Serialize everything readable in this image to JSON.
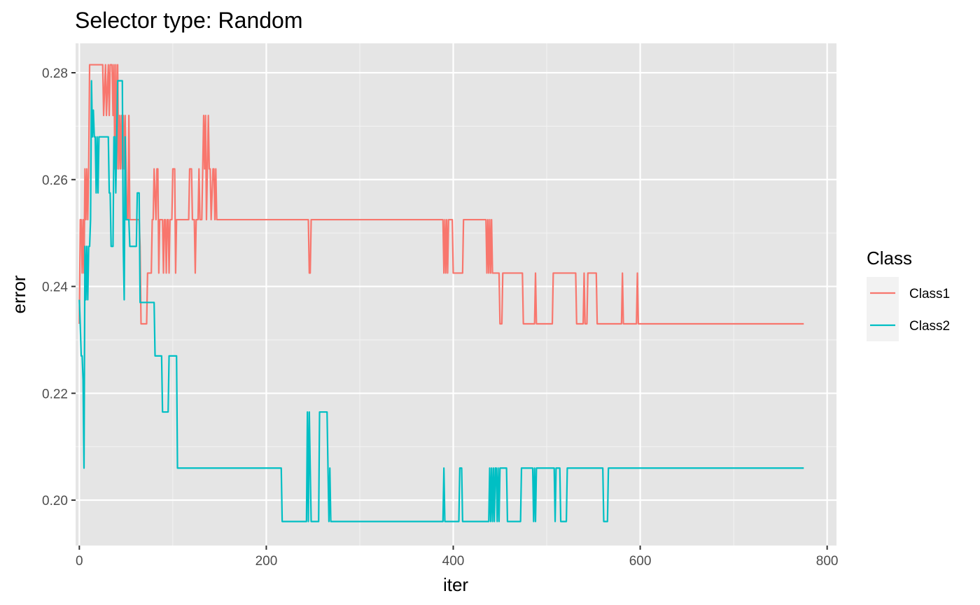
{
  "colors": {
    "panel_bg": "#E5E5E5",
    "grid_major": "#FFFFFF",
    "grid_minor": "#F2F2F2",
    "tick": "#333333",
    "legend_key_bg": "#F2F2F2",
    "class1": "#F8766D",
    "class2": "#00BFC4"
  },
  "chart_data": {
    "type": "line",
    "title": "Selector type: Random",
    "xlabel": "iter",
    "ylabel": "error",
    "xlim": [
      -4,
      810
    ],
    "ylim": [
      0.1915,
      0.2855
    ],
    "x_ticks": [
      0,
      200,
      400,
      600,
      800
    ],
    "x_tick_labels": [
      "0",
      "200",
      "400",
      "600",
      "800"
    ],
    "y_ticks": [
      0.2,
      0.22,
      0.24,
      0.26,
      0.28
    ],
    "y_tick_labels": [
      "0.20",
      "0.22",
      "0.24",
      "0.26",
      "0.28"
    ],
    "grid": true,
    "legend": {
      "title": "Class",
      "position": "right"
    },
    "series": [
      {
        "name": "Class1",
        "color": "#F8766D",
        "points": [
          [
            0,
            0.233
          ],
          [
            1,
            0.2525
          ],
          [
            2,
            0.2525
          ],
          [
            3,
            0.2425
          ],
          [
            4,
            0.2525
          ],
          [
            5,
            0.2425
          ],
          [
            6,
            0.262
          ],
          [
            7,
            0.2525
          ],
          [
            8,
            0.262
          ],
          [
            9,
            0.2525
          ],
          [
            10,
            0.262
          ],
          [
            11,
            0.2815
          ],
          [
            20,
            0.2815
          ],
          [
            25,
            0.2815
          ],
          [
            26,
            0.272
          ],
          [
            28,
            0.2815
          ],
          [
            29,
            0.272
          ],
          [
            31,
            0.2815
          ],
          [
            32,
            0.272
          ],
          [
            33,
            0.2815
          ],
          [
            35,
            0.2815
          ],
          [
            36,
            0.272
          ],
          [
            37,
            0.2815
          ],
          [
            38,
            0.262
          ],
          [
            39,
            0.2815
          ],
          [
            40,
            0.262
          ],
          [
            41,
            0.2815
          ],
          [
            42,
            0.262
          ],
          [
            43,
            0.272
          ],
          [
            44,
            0.262
          ],
          [
            45,
            0.272
          ],
          [
            46,
            0.262
          ],
          [
            47,
            0.272
          ],
          [
            48,
            0.262
          ],
          [
            49,
            0.272
          ],
          [
            50,
            0.262
          ],
          [
            51,
            0.2525
          ],
          [
            52,
            0.2525
          ],
          [
            53,
            0.272
          ],
          [
            54,
            0.2525
          ],
          [
            55,
            0.2525
          ],
          [
            64,
            0.2525
          ],
          [
            65,
            0.2475
          ],
          [
            66,
            0.233
          ],
          [
            72,
            0.233
          ],
          [
            73,
            0.2425
          ],
          [
            77,
            0.2425
          ],
          [
            78,
            0.2525
          ],
          [
            79,
            0.2525
          ],
          [
            80,
            0.262
          ],
          [
            82,
            0.2525
          ],
          [
            83,
            0.262
          ],
          [
            84,
            0.262
          ],
          [
            85,
            0.2425
          ],
          [
            86,
            0.2525
          ],
          [
            89,
            0.2525
          ],
          [
            90,
            0.2425
          ],
          [
            91,
            0.2525
          ],
          [
            92,
            0.2525
          ],
          [
            93,
            0.2425
          ],
          [
            94,
            0.2525
          ],
          [
            95,
            0.2525
          ],
          [
            96,
            0.2425
          ],
          [
            97,
            0.2525
          ],
          [
            99,
            0.2525
          ],
          [
            100,
            0.262
          ],
          [
            102,
            0.262
          ],
          [
            103,
            0.2425
          ],
          [
            104,
            0.2525
          ],
          [
            117,
            0.2525
          ],
          [
            118,
            0.262
          ],
          [
            120,
            0.262
          ],
          [
            121,
            0.2525
          ],
          [
            123,
            0.2525
          ],
          [
            124,
            0.2425
          ],
          [
            125,
            0.2525
          ],
          [
            127,
            0.2525
          ],
          [
            128,
            0.262
          ],
          [
            129,
            0.2525
          ],
          [
            131,
            0.2525
          ],
          [
            132,
            0.262
          ],
          [
            133,
            0.272
          ],
          [
            134,
            0.262
          ],
          [
            135,
            0.272
          ],
          [
            136,
            0.2525
          ],
          [
            137,
            0.262
          ],
          [
            138,
            0.272
          ],
          [
            139,
            0.262
          ],
          [
            140,
            0.262
          ],
          [
            141,
            0.2525
          ],
          [
            143,
            0.262
          ],
          [
            144,
            0.262
          ],
          [
            145,
            0.2525
          ],
          [
            146,
            0.262
          ],
          [
            147,
            0.2525
          ],
          [
            148,
            0.2525
          ],
          [
            245,
            0.2525
          ],
          [
            246,
            0.2425
          ],
          [
            247,
            0.2425
          ],
          [
            248,
            0.2525
          ],
          [
            389,
            0.2525
          ],
          [
            390,
            0.2425
          ],
          [
            391,
            0.2525
          ],
          [
            392,
            0.2425
          ],
          [
            393,
            0.2525
          ],
          [
            394,
            0.2425
          ],
          [
            395,
            0.2525
          ],
          [
            399,
            0.2525
          ],
          [
            400,
            0.2425
          ],
          [
            410,
            0.2425
          ],
          [
            411,
            0.2525
          ],
          [
            435,
            0.2525
          ],
          [
            436,
            0.2425
          ],
          [
            437,
            0.2525
          ],
          [
            438,
            0.2425
          ],
          [
            439,
            0.2525
          ],
          [
            440,
            0.2425
          ],
          [
            441,
            0.2525
          ],
          [
            442,
            0.2425
          ],
          [
            449,
            0.2425
          ],
          [
            450,
            0.233
          ],
          [
            452,
            0.233
          ],
          [
            453,
            0.2425
          ],
          [
            474,
            0.2425
          ],
          [
            475,
            0.233
          ],
          [
            487,
            0.233
          ],
          [
            488,
            0.2425
          ],
          [
            489,
            0.233
          ],
          [
            506,
            0.233
          ],
          [
            507,
            0.2425
          ],
          [
            531,
            0.2425
          ],
          [
            532,
            0.233
          ],
          [
            539,
            0.233
          ],
          [
            540,
            0.2425
          ],
          [
            541,
            0.233
          ],
          [
            543,
            0.233
          ],
          [
            544,
            0.2425
          ],
          [
            553,
            0.2425
          ],
          [
            554,
            0.233
          ],
          [
            580,
            0.233
          ],
          [
            581,
            0.2425
          ],
          [
            582,
            0.233
          ],
          [
            596,
            0.233
          ],
          [
            597,
            0.2425
          ],
          [
            598,
            0.233
          ],
          [
            775,
            0.233
          ]
        ]
      },
      {
        "name": "Class2",
        "color": "#00BFC4",
        "points": [
          [
            0,
            0.2375
          ],
          [
            1,
            0.2325
          ],
          [
            2,
            0.227
          ],
          [
            3,
            0.227
          ],
          [
            4,
            0.2225
          ],
          [
            5,
            0.206
          ],
          [
            6,
            0.2475
          ],
          [
            7,
            0.2375
          ],
          [
            8,
            0.2475
          ],
          [
            9,
            0.2375
          ],
          [
            10,
            0.2475
          ],
          [
            11,
            0.2475
          ],
          [
            12,
            0.2525
          ],
          [
            13,
            0.2785
          ],
          [
            14,
            0.268
          ],
          [
            15,
            0.273
          ],
          [
            16,
            0.268
          ],
          [
            17,
            0.268
          ],
          [
            18,
            0.2575
          ],
          [
            19,
            0.268
          ],
          [
            20,
            0.2575
          ],
          [
            21,
            0.268
          ],
          [
            31,
            0.268
          ],
          [
            32,
            0.2575
          ],
          [
            33,
            0.2575
          ],
          [
            34,
            0.2475
          ],
          [
            36,
            0.2475
          ],
          [
            37,
            0.268
          ],
          [
            38,
            0.268
          ],
          [
            39,
            0.2575
          ],
          [
            40,
            0.268
          ],
          [
            41,
            0.2785
          ],
          [
            46,
            0.2785
          ],
          [
            47,
            0.2475
          ],
          [
            48,
            0.2375
          ],
          [
            49,
            0.268
          ],
          [
            50,
            0.2525
          ],
          [
            53,
            0.2525
          ],
          [
            54,
            0.2475
          ],
          [
            61,
            0.2475
          ],
          [
            62,
            0.2575
          ],
          [
            64,
            0.2575
          ],
          [
            65,
            0.237
          ],
          [
            80,
            0.237
          ],
          [
            81,
            0.227
          ],
          [
            88,
            0.227
          ],
          [
            89,
            0.2165
          ],
          [
            95,
            0.2165
          ],
          [
            96,
            0.227
          ],
          [
            104,
            0.227
          ],
          [
            105,
            0.206
          ],
          [
            216,
            0.206
          ],
          [
            217,
            0.196
          ],
          [
            243,
            0.196
          ],
          [
            244,
            0.2165
          ],
          [
            245,
            0.196
          ],
          [
            246,
            0.2165
          ],
          [
            247,
            0.206
          ],
          [
            248,
            0.196
          ],
          [
            256,
            0.196
          ],
          [
            257,
            0.2165
          ],
          [
            265,
            0.2165
          ],
          [
            266,
            0.206
          ],
          [
            267,
            0.196
          ],
          [
            268,
            0.206
          ],
          [
            269,
            0.196
          ],
          [
            389,
            0.196
          ],
          [
            390,
            0.206
          ],
          [
            391,
            0.196
          ],
          [
            406,
            0.196
          ],
          [
            407,
            0.206
          ],
          [
            409,
            0.206
          ],
          [
            410,
            0.196
          ],
          [
            438,
            0.196
          ],
          [
            439,
            0.206
          ],
          [
            440,
            0.196
          ],
          [
            441,
            0.206
          ],
          [
            442,
            0.196
          ],
          [
            443,
            0.206
          ],
          [
            444,
            0.196
          ],
          [
            445,
            0.206
          ],
          [
            446,
            0.206
          ],
          [
            447,
            0.196
          ],
          [
            448,
            0.206
          ],
          [
            449,
            0.196
          ],
          [
            450,
            0.206
          ],
          [
            457,
            0.206
          ],
          [
            458,
            0.196
          ],
          [
            472,
            0.196
          ],
          [
            473,
            0.206
          ],
          [
            485,
            0.206
          ],
          [
            486,
            0.196
          ],
          [
            487,
            0.206
          ],
          [
            488,
            0.196
          ],
          [
            489,
            0.206
          ],
          [
            508,
            0.206
          ],
          [
            509,
            0.196
          ],
          [
            510,
            0.206
          ],
          [
            514,
            0.206
          ],
          [
            515,
            0.196
          ],
          [
            521,
            0.196
          ],
          [
            522,
            0.206
          ],
          [
            560,
            0.206
          ],
          [
            561,
            0.196
          ],
          [
            565,
            0.196
          ],
          [
            566,
            0.206
          ],
          [
            775,
            0.206
          ]
        ]
      }
    ]
  }
}
